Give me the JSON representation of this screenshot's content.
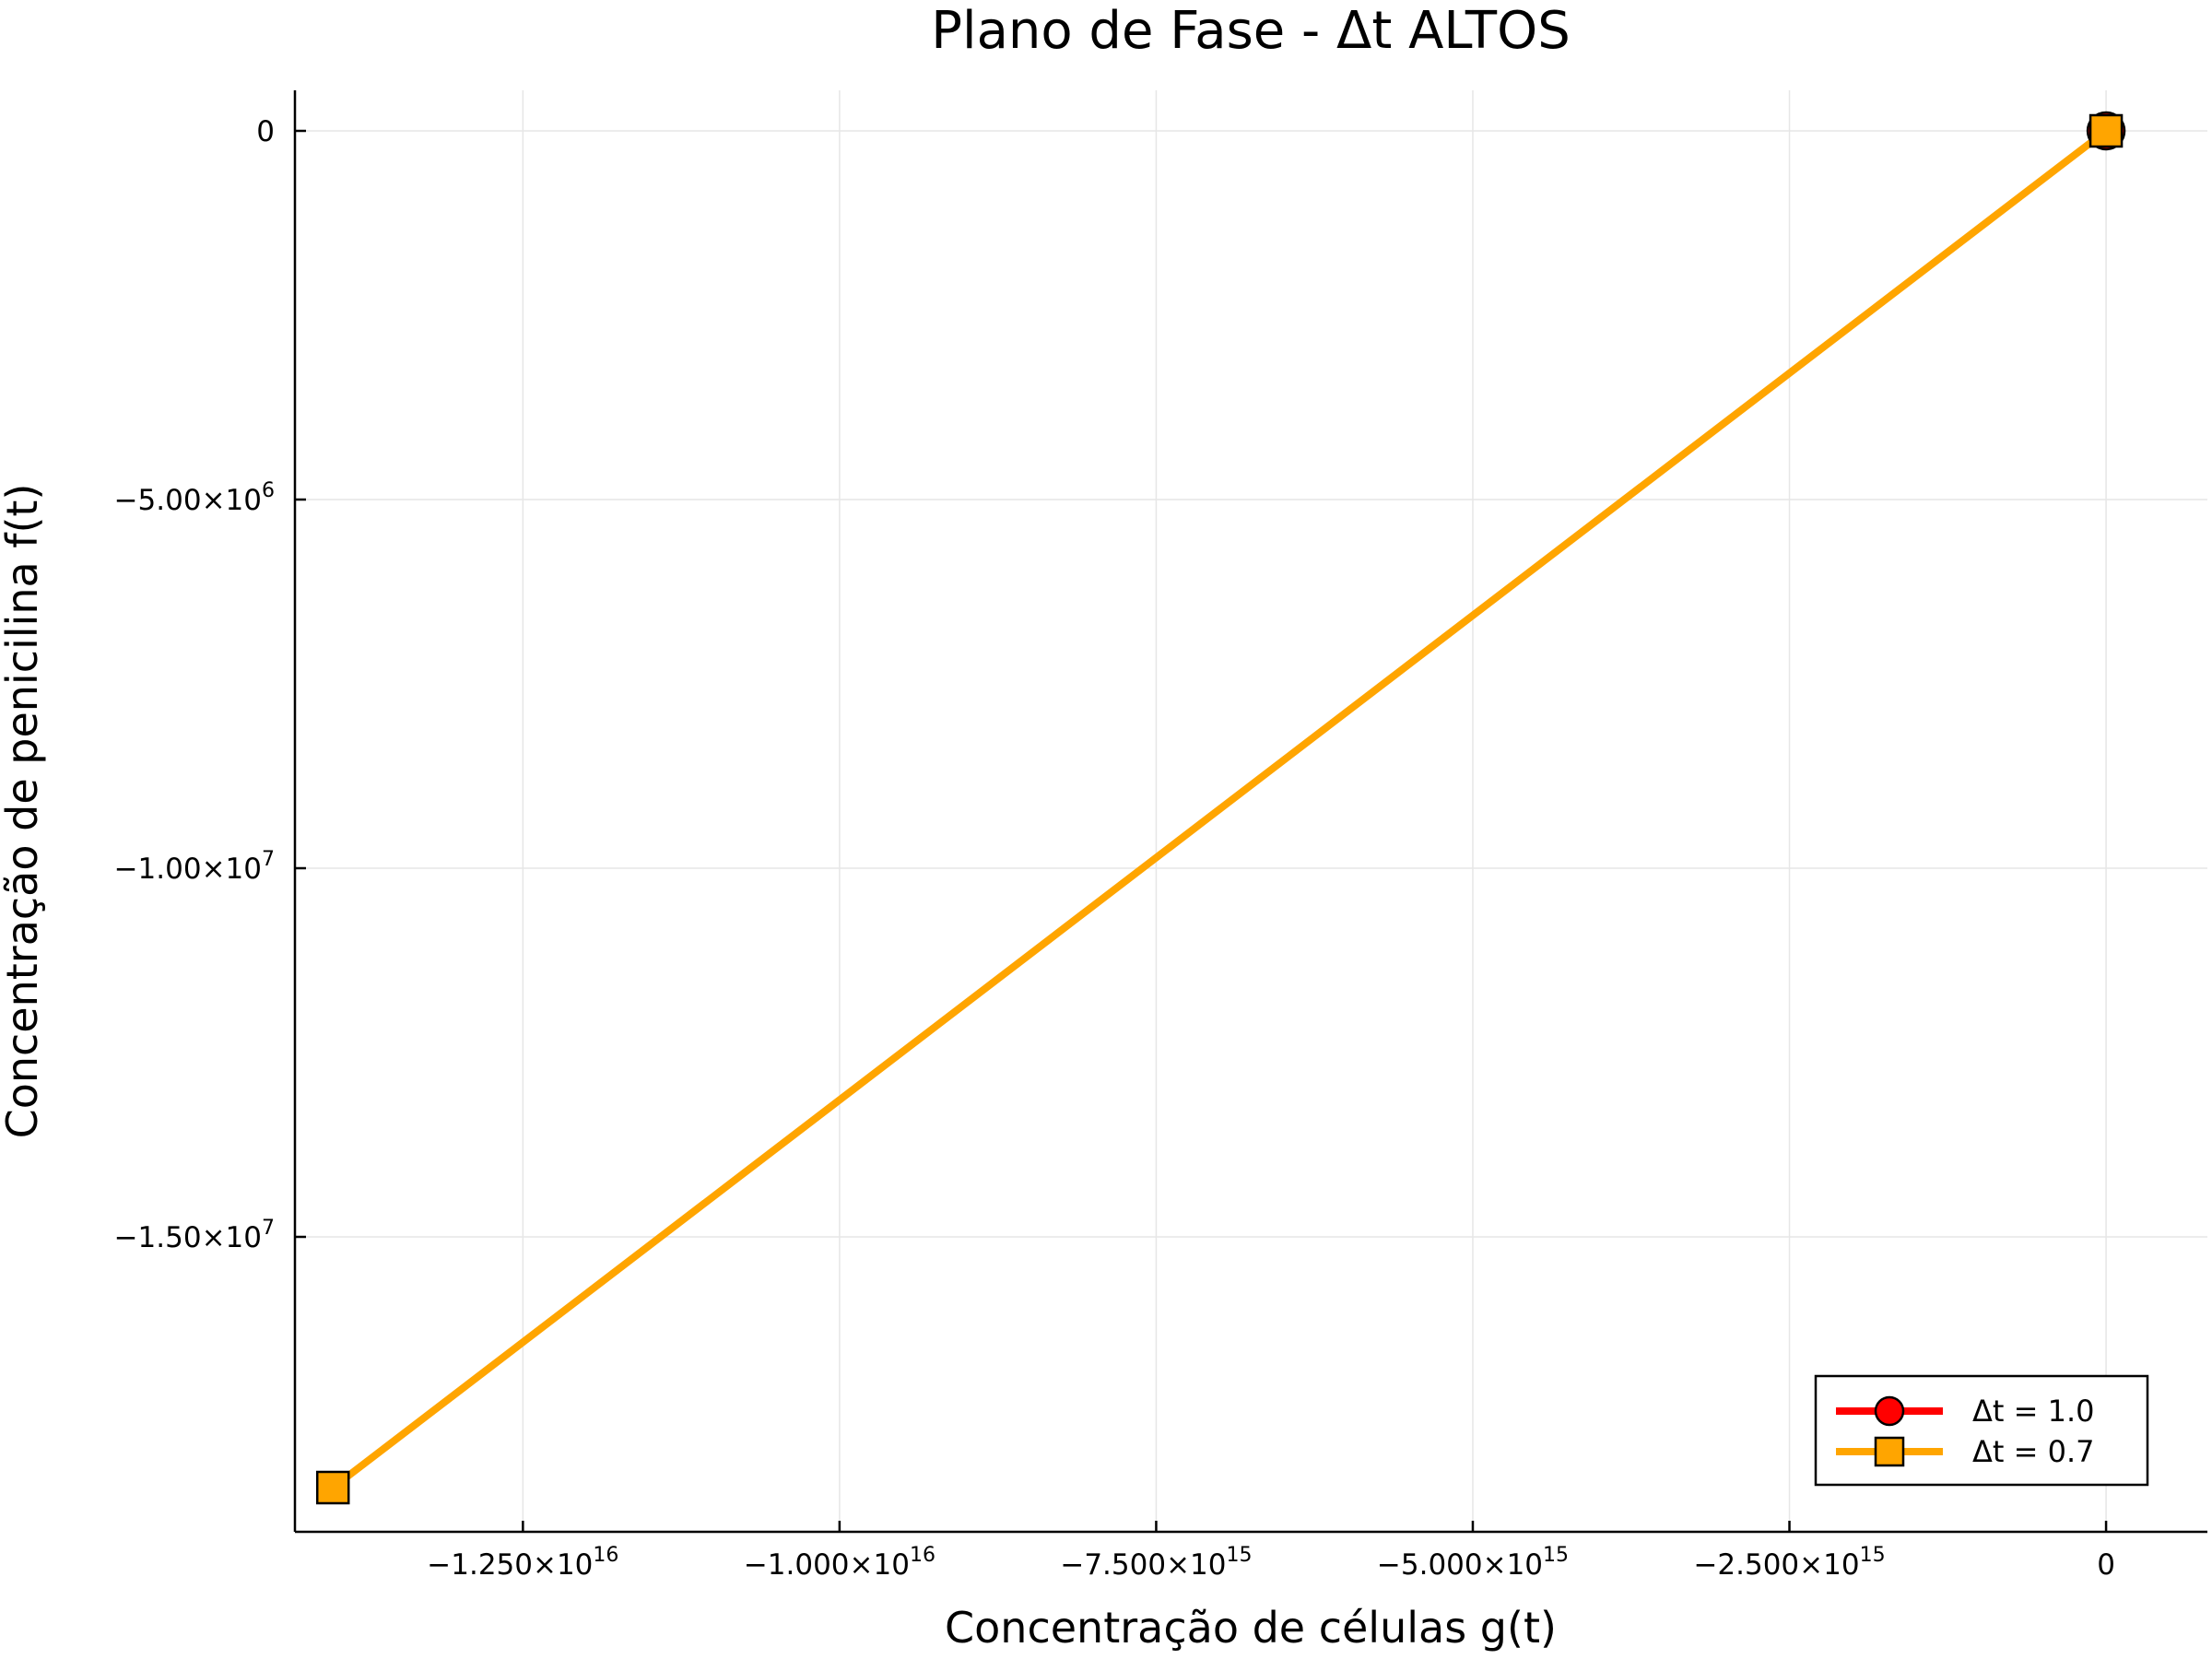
{
  "chart_data": {
    "type": "line",
    "title": "Plano de Fase - Δt ALTOS",
    "xlabel": "Concentração de células g(t)",
    "ylabel": "Concentração de penicilina f(t)",
    "xlim": [
      -1.43e+16,
      800000000000000.0
    ],
    "ylim": [
      -19000000.0,
      550000.0
    ],
    "grid": true,
    "legend_position": "bottom-right",
    "x_ticks": [
      {
        "value": -1.25e+16,
        "mantissa": "−1.250×10",
        "exp": "16"
      },
      {
        "value": -1e+16,
        "mantissa": "−1.000×10",
        "exp": "16"
      },
      {
        "value": -7500000000000000.0,
        "mantissa": "−7.500×10",
        "exp": "15"
      },
      {
        "value": -5000000000000000.0,
        "mantissa": "−5.000×10",
        "exp": "15"
      },
      {
        "value": -2500000000000000.0,
        "mantissa": "−2.500×10",
        "exp": "15"
      },
      {
        "value": 0,
        "mantissa": "0",
        "exp": ""
      }
    ],
    "y_ticks": [
      {
        "value": 0,
        "mantissa": "0",
        "exp": ""
      },
      {
        "value": -5000000.0,
        "mantissa": "−5.00×10",
        "exp": "6"
      },
      {
        "value": -10000000.0,
        "mantissa": "−1.00×10",
        "exp": "7"
      },
      {
        "value": -15000000.0,
        "mantissa": "−1.50×10",
        "exp": "7"
      }
    ],
    "series": [
      {
        "name": "Δt = 1.0",
        "color": "#ff0000",
        "marker": "circle",
        "x": [
          0
        ],
        "y": [
          0
        ]
      },
      {
        "name": "Δt = 0.7",
        "color": "#ffa500",
        "marker": "square",
        "x": [
          -1.4e+16,
          0
        ],
        "y": [
          -18400000.0,
          0
        ]
      }
    ]
  }
}
